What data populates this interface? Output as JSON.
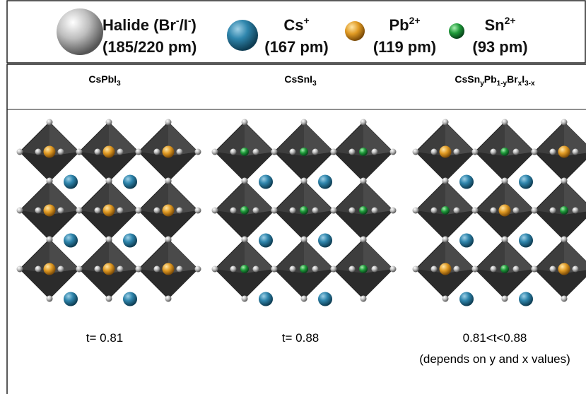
{
  "legend": {
    "items": [
      {
        "name": [
          {
            "text": "Halide (Br"
          },
          {
            "sup": "-"
          },
          {
            "text": "/I"
          },
          {
            "sup": "-"
          },
          {
            "text": ")"
          }
        ],
        "size": "(185/220 pm)"
      },
      {
        "name": [
          {
            "text": "Cs"
          },
          {
            "sup": "+"
          }
        ],
        "size": "(167 pm)"
      },
      {
        "name": [
          {
            "text": "Pb"
          },
          {
            "sup": "2+"
          }
        ],
        "size": "(119 pm)"
      },
      {
        "name": [
          {
            "text": "Sn"
          },
          {
            "sup": "2+"
          }
        ],
        "size": "(93 pm)"
      }
    ]
  },
  "columns": [
    {
      "title": [
        {
          "text": "CsPbI"
        },
        {
          "sub": "3"
        }
      ],
      "note": [
        "t= 0.81"
      ]
    },
    {
      "title": [
        {
          "text": "CsSnI"
        },
        {
          "sub": "3"
        }
      ],
      "note": [
        "t= 0.88"
      ]
    },
    {
      "title": [
        {
          "text": "CsSn"
        },
        {
          "sub": "y"
        },
        {
          "text": "Pb"
        },
        {
          "sub": "1-y"
        },
        {
          "text": "Br"
        },
        {
          "sub": "x"
        },
        {
          "text": "I"
        },
        {
          "sub": "3-x"
        }
      ],
      "note": [
        "0.81<t<0.88",
        "(depends on y and x values)"
      ]
    }
  ]
}
